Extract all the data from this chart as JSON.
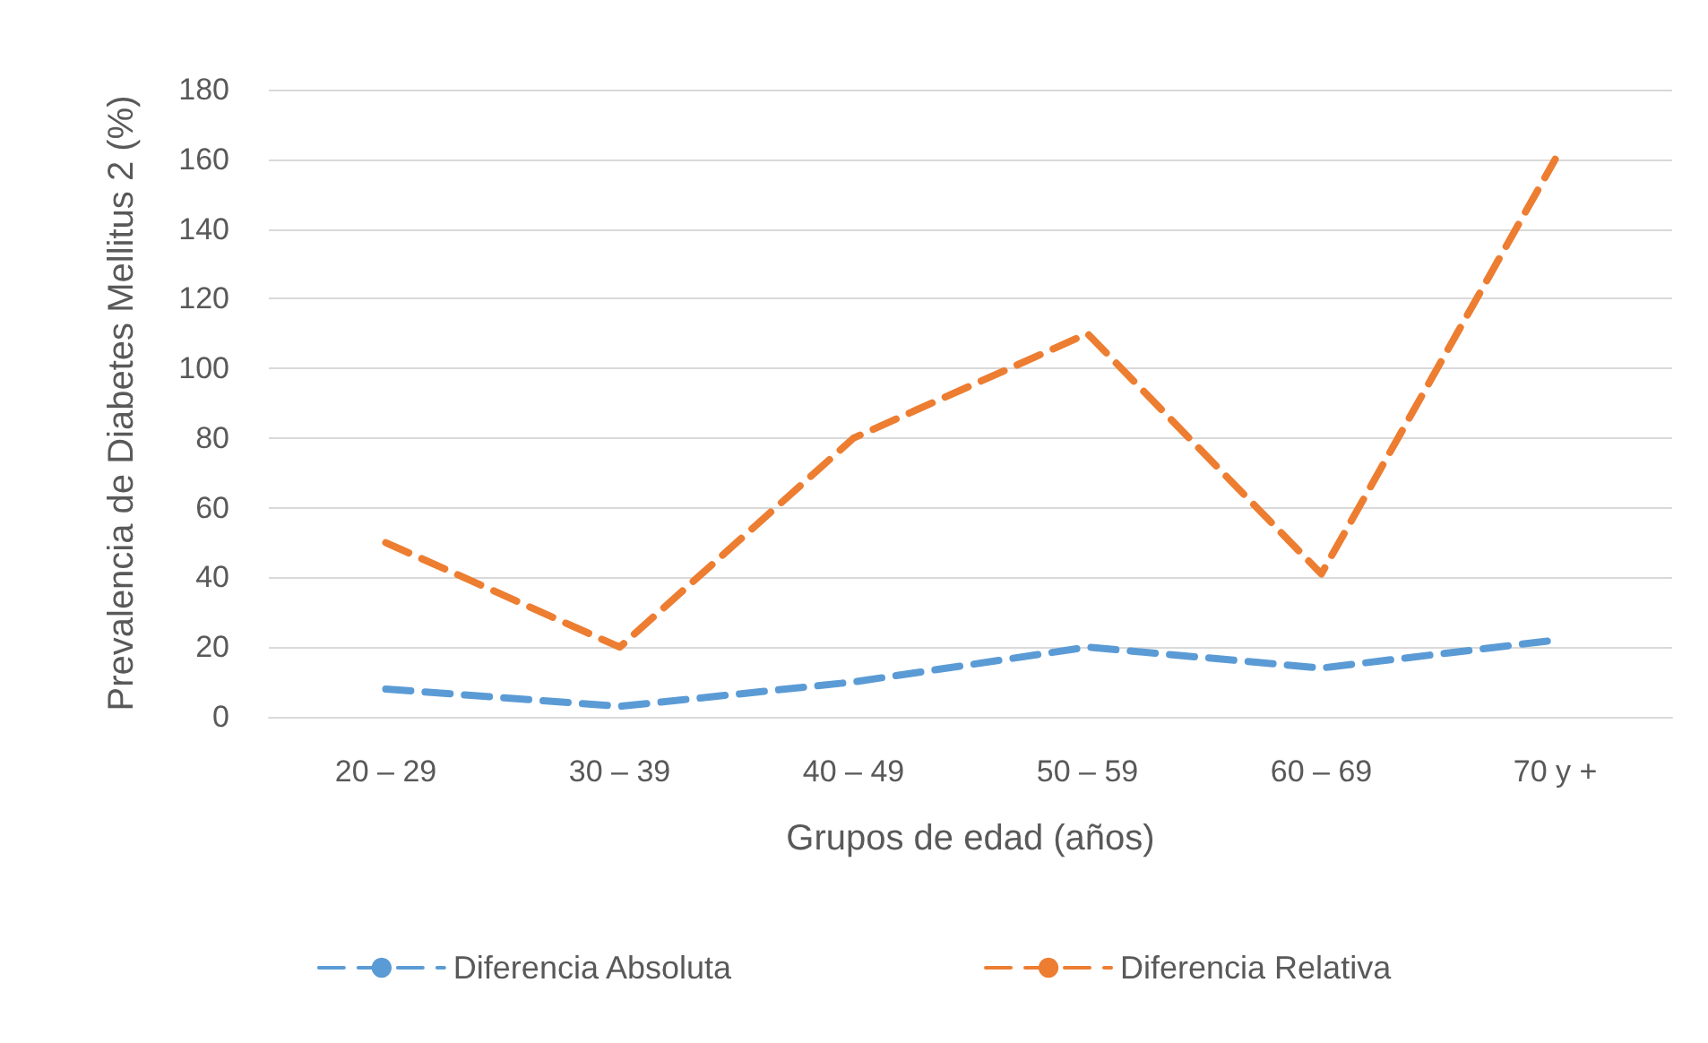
{
  "chart_data": {
    "type": "line",
    "xlabel": "Grupos de edad (años)",
    "ylabel": "Prevalencia de Diabetes Mellitus 2 (%)",
    "categories": [
      "20 – 29",
      "30 – 39",
      "40 – 49",
      "50 – 59",
      "60 – 69",
      "70 y +"
    ],
    "series": [
      {
        "name": "Diferencia Absoluta",
        "color": "#5b9bd5",
        "line_style": "dashed",
        "values": [
          8,
          3,
          10,
          20,
          14,
          22
        ]
      },
      {
        "name": "Diferencia Relativa",
        "color": "#ed7d31",
        "line_style": "dashed",
        "values": [
          50,
          20,
          80,
          110,
          41,
          160
        ]
      }
    ],
    "ylim": [
      0,
      180
    ],
    "yticks": [
      0,
      20,
      40,
      60,
      80,
      100,
      120,
      140,
      160,
      180
    ],
    "grid": "y",
    "legend": "bottom",
    "marker": "none"
  }
}
